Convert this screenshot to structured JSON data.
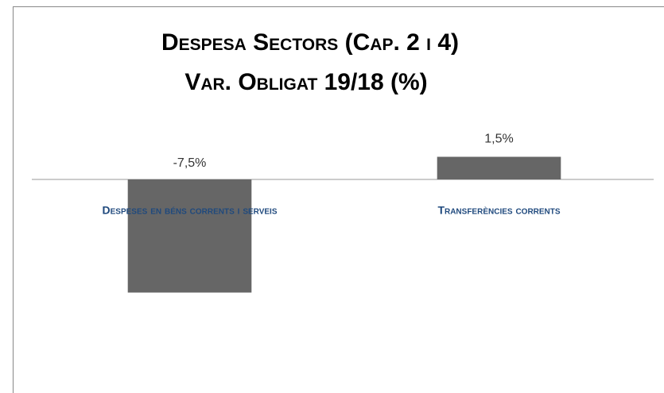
{
  "chart_data": {
    "type": "bar",
    "title": [
      "Despesa Sectors (Cap. 2 i 4)",
      "Var. Obligat 19/18 (%)"
    ],
    "categories": [
      "Despeses en béns corrents i serveis",
      "Transferències corrents"
    ],
    "values": [
      -7.5,
      1.5
    ],
    "value_labels": [
      "-7,5%",
      "1,5%"
    ],
    "color": "#666666",
    "ylim": [
      -10,
      4
    ]
  }
}
